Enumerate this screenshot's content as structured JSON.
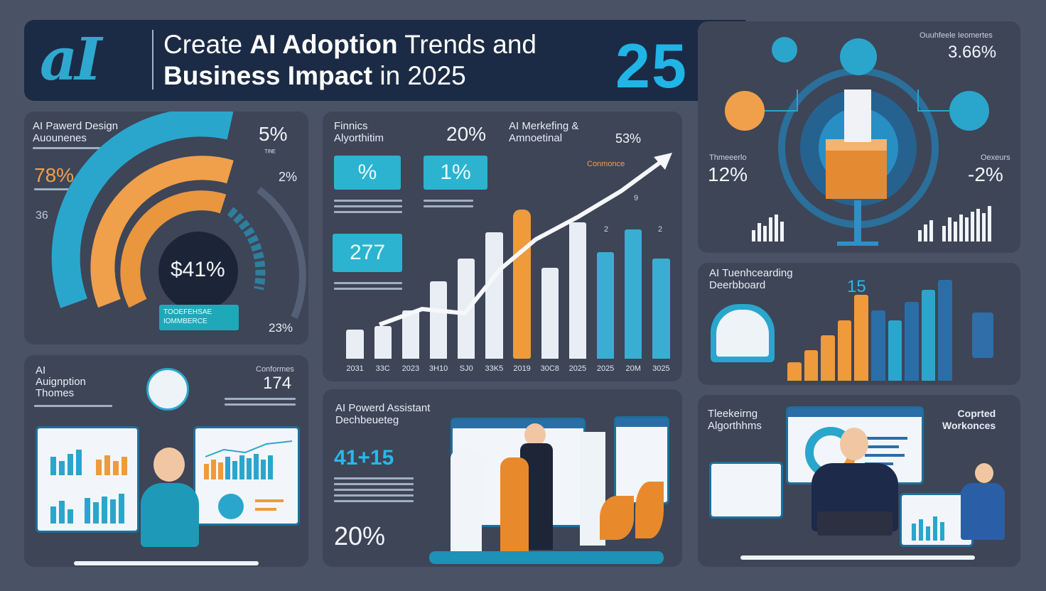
{
  "header": {
    "logo": "aI",
    "title_prefix": "Create ",
    "title_bold1": "AI Adoption",
    "title_suffix1": " Trends and",
    "title_bold2": "Business Impact",
    "title_suffix2": " in 2025",
    "big_number": "25"
  },
  "panel_design": {
    "title": "AI Pawerd Design\nAuounenes",
    "stat_left": "78%",
    "stat_top_right": "5%",
    "stat_mid_right": "2%",
    "stat_left_small": "36",
    "center_value": "$41%",
    "button_text": "TOOEFEHSAE\nIOMMBERCE",
    "stat_bottom_right": "23%",
    "arc_levels": {
      "blue": 0.78,
      "orange": 0.62,
      "inner": 0.41
    }
  },
  "panel_finance": {
    "title": "Finnics\nAlyorthitim",
    "stat_top": "20%",
    "mkt_title": "AI Merkefing &\nAmnoetinal",
    "chip1": "%",
    "chip2": "1%",
    "chip3": "277",
    "stat_right": "53%",
    "bar_label1": "9",
    "bar_label2": "2",
    "bar_label3": "2",
    "chart_data": {
      "type": "bar",
      "categories": [
        "2031",
        "33C",
        "2023",
        "3H10",
        "SJ0",
        "33K5",
        "2019",
        "30C8",
        "2025",
        "2025",
        "20M",
        "3025"
      ],
      "values": [
        0.18,
        0.2,
        0.3,
        0.48,
        0.62,
        0.78,
        0.92,
        0.56,
        0.84,
        0.66,
        0.8,
        0.62
      ],
      "colors": [
        "#e9eef4",
        "#e9eef4",
        "#e9eef4",
        "#e9eef4",
        "#e9eef4",
        "#e9eef4",
        "#ef9a3b",
        "#e9eef4",
        "#e9eef4",
        "#3aaed2",
        "#3aaed2",
        "#3aaed2"
      ]
    }
  },
  "panel_top_right": {
    "label_top": "Ouuhfeele Ieomertes",
    "stat_top": "3.66%",
    "label_left": "Thmeeerlo",
    "stat_left": "12%",
    "label_right": "Oexeurs",
    "stat_right": "-2%"
  },
  "panel_dashboard": {
    "title": "AI Tuenhcearding\nDeerbboard",
    "stat": "15",
    "bars": [
      0.18,
      0.3,
      0.45,
      0.6,
      0.85,
      0.7,
      0.6,
      0.78,
      0.9,
      1.0
    ]
  },
  "panel_adoption": {
    "title": "AI\nAuignption\nThomes",
    "label_right": "Conformes",
    "stat": "174"
  },
  "panel_assistant": {
    "title": "AI Powerd Assistant\nDechbeueteg",
    "stat": "41+15",
    "stat_bottom": "20%"
  },
  "panel_marketing": {
    "title": "Tleekeirng\nAlgorthhms",
    "label_right": "Coprted\nWorkonces"
  },
  "colors": {
    "background": "#4a5366",
    "panel": "#3d4557",
    "accent_blue": "#28b8e8",
    "accent_orange": "#ef9a3b",
    "header_bg": "#1b2b45"
  }
}
